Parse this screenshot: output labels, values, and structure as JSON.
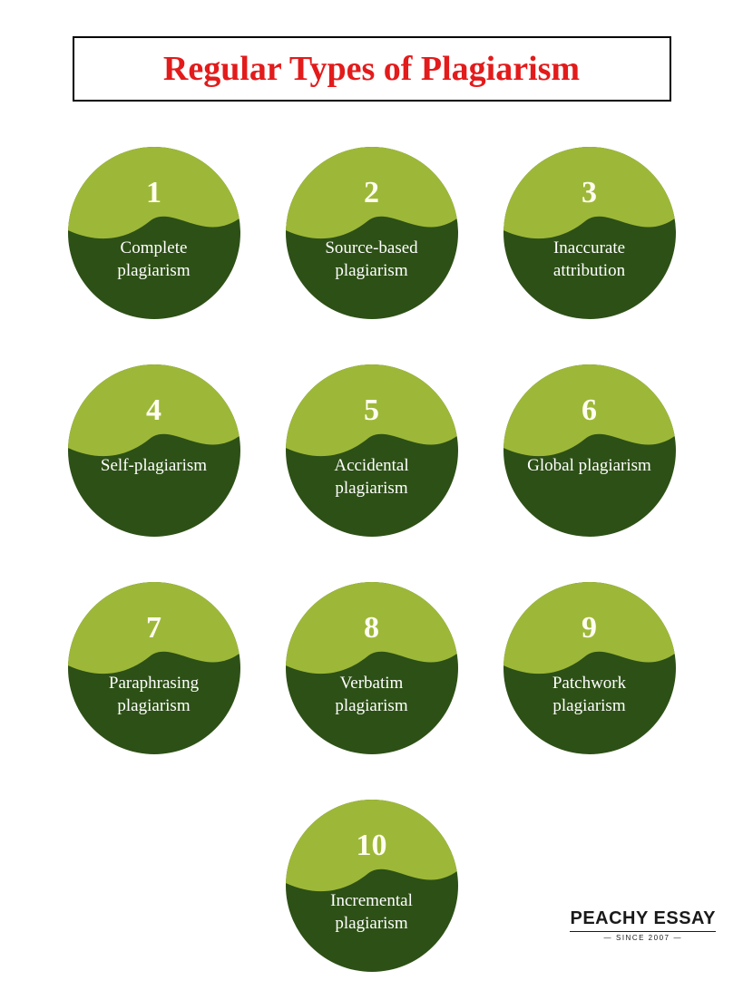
{
  "title": "Regular Types of Plagiarism",
  "title_color": "#e31b1b",
  "title_fontsize": 38,
  "circle_colors": {
    "top": "#9db838",
    "bottom": "#2d5016",
    "number_text": "#fffef0",
    "label_text": "#ffffff"
  },
  "circle_diameter": 190,
  "items": [
    {
      "number": "1",
      "label": "Complete plagiarism"
    },
    {
      "number": "2",
      "label": "Source-based plagiarism"
    },
    {
      "number": "3",
      "label": "Inaccurate attribution"
    },
    {
      "number": "4",
      "label": "Self-plagiarism"
    },
    {
      "number": "5",
      "label": "Accidental plagiarism"
    },
    {
      "number": "6",
      "label": "Global plagiarism"
    },
    {
      "number": "7",
      "label": "Paraphrasing plagiarism"
    },
    {
      "number": "8",
      "label": "Verbatim plagiarism"
    },
    {
      "number": "9",
      "label": "Patchwork plagiarism"
    },
    {
      "number": "10",
      "label": "Incremental plagiarism"
    }
  ],
  "logo": {
    "main": "PEACHY ESSAY",
    "sub": "SINCE 2007"
  }
}
